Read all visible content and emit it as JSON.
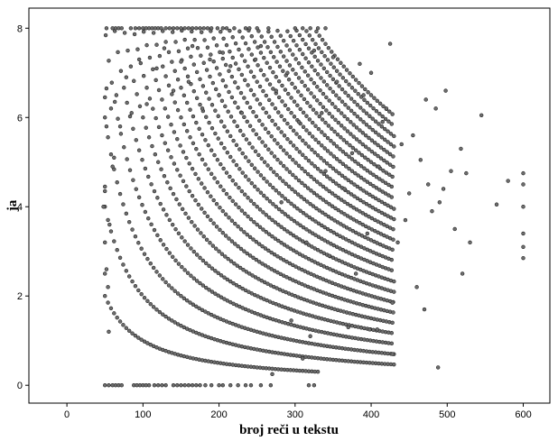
{
  "chart_data": {
    "type": "scatter",
    "xlabel": "broj reči u tekstu",
    "ylabel": "ja",
    "xlim": [
      -50,
      635
    ],
    "ylim": [
      -0.4,
      8.45
    ],
    "xticks": [
      0,
      100,
      200,
      300,
      400,
      500,
      600
    ],
    "yticks": [
      0,
      2,
      4,
      6,
      8
    ],
    "grid": false,
    "legend": "none",
    "point_fill": "#6e6e6e",
    "point_stroke": "#222222",
    "curve_levels": [
      1,
      2,
      3,
      4,
      5,
      6,
      7,
      8,
      9,
      10,
      11,
      12,
      13,
      14,
      15,
      16,
      17,
      18,
      19,
      20,
      21,
      22,
      23,
      24,
      25,
      26
    ],
    "curve_x_range": [
      50,
      430
    ],
    "ceiling": {
      "y": 8,
      "x": [
        52,
        60,
        64,
        68,
        72,
        84,
        90,
        95,
        100,
        104,
        108,
        112,
        116,
        120,
        124,
        130,
        135,
        140,
        145,
        150,
        155,
        160,
        165,
        170,
        175,
        180,
        185,
        190,
        198,
        205,
        210,
        220,
        235,
        240,
        250,
        265,
        300,
        310,
        320,
        330,
        340
      ]
    },
    "floor": {
      "y": 0,
      "x": [
        50,
        55,
        60,
        64,
        68,
        72,
        88,
        92,
        96,
        100,
        104,
        108,
        115,
        120,
        125,
        130,
        140,
        145,
        150,
        155,
        160,
        165,
        170,
        175,
        182,
        190,
        200,
        205,
        215,
        225,
        235,
        242,
        255,
        268,
        318,
        325
      ]
    },
    "extra_points": [
      [
        600,
        4.75
      ],
      [
        600,
        4.5
      ],
      [
        600,
        4.0
      ],
      [
        600,
        3.4
      ],
      [
        600,
        3.1
      ],
      [
        600,
        2.85
      ],
      [
        580,
        4.58
      ],
      [
        565,
        4.05
      ],
      [
        545,
        6.05
      ],
      [
        530,
        3.2
      ],
      [
        525,
        4.75
      ],
      [
        520,
        2.5
      ],
      [
        518,
        5.3
      ],
      [
        510,
        3.5
      ],
      [
        505,
        4.8
      ],
      [
        498,
        6.6
      ],
      [
        495,
        4.4
      ],
      [
        490,
        4.1
      ],
      [
        488,
        0.4
      ],
      [
        485,
        6.2
      ],
      [
        480,
        3.9
      ],
      [
        475,
        4.5
      ],
      [
        472,
        6.4
      ],
      [
        470,
        1.7
      ],
      [
        465,
        5.05
      ],
      [
        460,
        2.2
      ],
      [
        455,
        5.6
      ],
      [
        450,
        4.3
      ],
      [
        445,
        3.7
      ],
      [
        440,
        5.4
      ],
      [
        435,
        3.2
      ],
      [
        428,
        0.7
      ],
      [
        428,
        1.85
      ],
      [
        425,
        7.65
      ],
      [
        420,
        6.2
      ],
      [
        415,
        5.9
      ],
      [
        410,
        4.9
      ],
      [
        408,
        1.25
      ],
      [
        400,
        7.0
      ],
      [
        398,
        1.25
      ],
      [
        395,
        3.4
      ],
      [
        390,
        6.5
      ],
      [
        385,
        7.2
      ],
      [
        380,
        2.5
      ],
      [
        375,
        5.2
      ],
      [
        370,
        1.3
      ],
      [
        365,
        4.4
      ],
      [
        355,
        6.8
      ],
      [
        350,
        7.35
      ],
      [
        345,
        2.9
      ],
      [
        340,
        4.8
      ],
      [
        335,
        6.1
      ],
      [
        325,
        7.5
      ],
      [
        320,
        1.1
      ],
      [
        315,
        3.2
      ],
      [
        310,
        0.6
      ],
      [
        305,
        5.9
      ],
      [
        295,
        1.45
      ],
      [
        290,
        7.0
      ],
      [
        282,
        4.1
      ],
      [
        275,
        6.6
      ],
      [
        270,
        0.25
      ],
      [
        255,
        7.6
      ],
      [
        248,
        7.3
      ],
      [
        230,
        6.1
      ],
      [
        215,
        7.15
      ],
      [
        205,
        7.45
      ],
      [
        200,
        6.5
      ],
      [
        188,
        7.3
      ],
      [
        178,
        6.2
      ],
      [
        165,
        7.6
      ],
      [
        160,
        6.8
      ],
      [
        150,
        7.25
      ],
      [
        140,
        6.6
      ],
      [
        128,
        7.55
      ],
      [
        118,
        7.1
      ],
      [
        105,
        6.3
      ],
      [
        95,
        7.3
      ],
      [
        85,
        6.1
      ],
      [
        78,
        6.9
      ],
      [
        70,
        5.8
      ],
      [
        65,
        6.5
      ],
      [
        58,
        6.2
      ],
      [
        56,
        3.6
      ],
      [
        54,
        2.2
      ],
      [
        52,
        2.6
      ],
      [
        50,
        4.35
      ],
      [
        50,
        4.45
      ],
      [
        52,
        5.8
      ],
      [
        50,
        6.45
      ],
      [
        52,
        6.65
      ],
      [
        55,
        1.2
      ],
      [
        50,
        2.5
      ],
      [
        50,
        3.2
      ],
      [
        62,
        5.1
      ],
      [
        60,
        4.9
      ],
      [
        48,
        4.0
      ]
    ]
  }
}
